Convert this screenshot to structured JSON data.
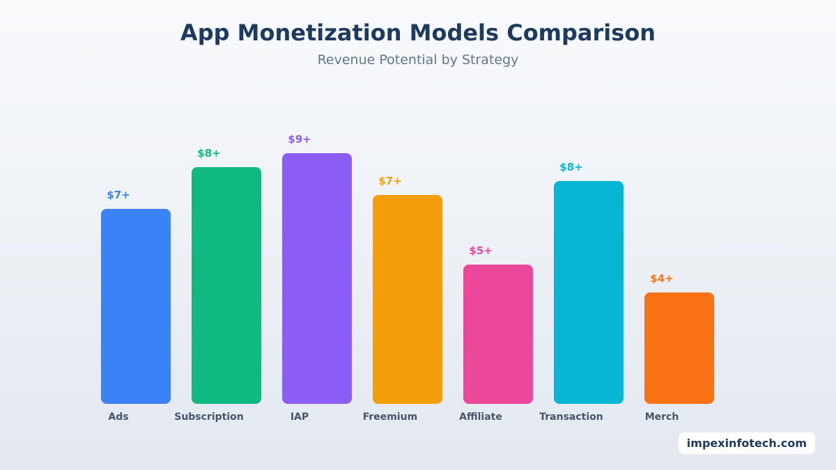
{
  "chart_data": {
    "type": "bar",
    "title": "App Monetization Models Comparison",
    "subtitle": "Revenue Potential by Strategy",
    "categories": [
      "Ads",
      "Subscription",
      "IAP",
      "Freemium",
      "Affiliate",
      "Transaction",
      "Merch"
    ],
    "values": [
      7,
      8.5,
      9,
      7.5,
      5,
      8,
      4
    ],
    "data_labels": [
      "$7+",
      "$8+",
      "$9+",
      "$7+",
      "$5+",
      "$8+",
      "$4+"
    ],
    "colors": [
      "#3b82f6",
      "#10b981",
      "#8b5cf6",
      "#f59e0b",
      "#ec4899",
      "#06b6d4",
      "#f97316"
    ],
    "ylim": [
      0,
      10
    ],
    "grid": false,
    "xlabel": "",
    "ylabel": ""
  },
  "watermark": "impexinfotech.com"
}
